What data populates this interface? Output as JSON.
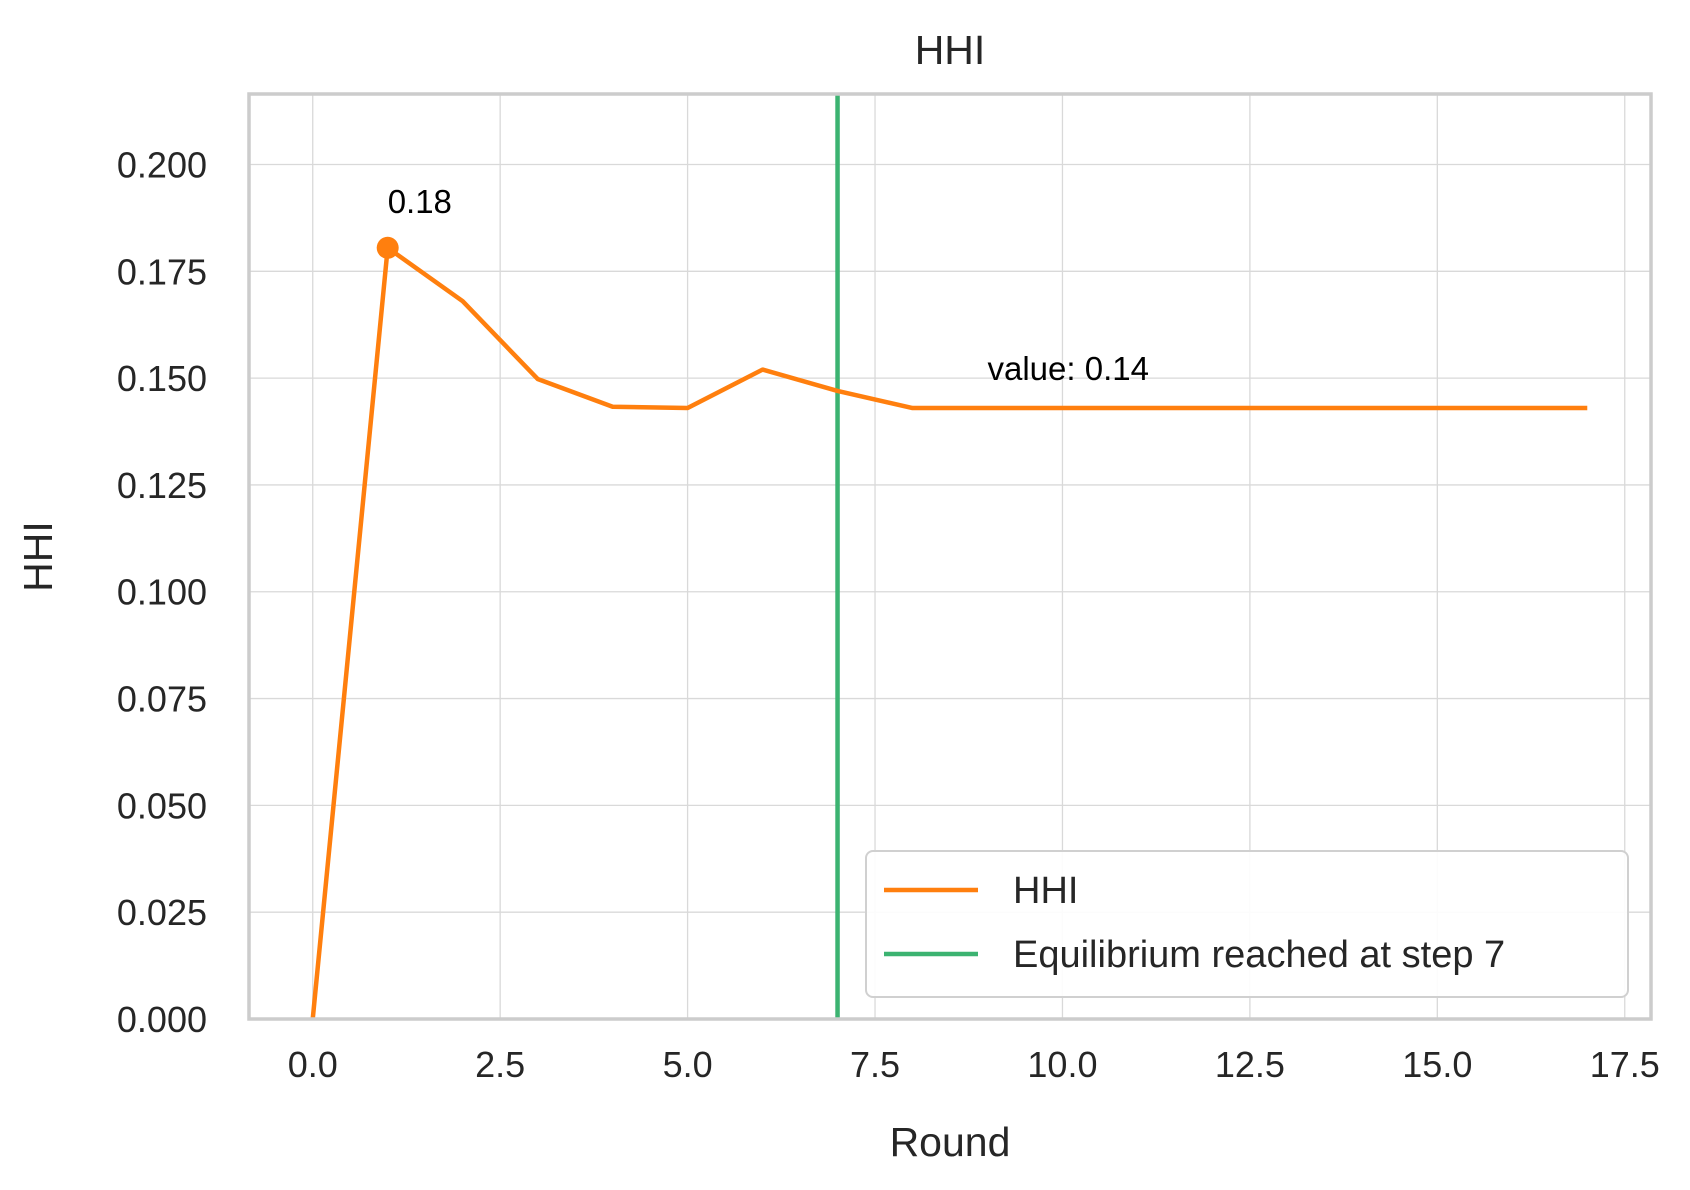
{
  "chart_data": {
    "type": "line",
    "title": "HHI",
    "xlabel": "Round",
    "ylabel": "HHI",
    "xlim": [
      -0.85,
      17.85
    ],
    "ylim": [
      0,
      0.2165
    ],
    "grid": true,
    "legend_position": "lower-right",
    "x_ticks": [
      "0.0",
      "2.5",
      "5.0",
      "7.5",
      "10.0",
      "12.5",
      "15.0",
      "17.5"
    ],
    "y_ticks": [
      "0.000",
      "0.025",
      "0.050",
      "0.075",
      "0.100",
      "0.125",
      "0.150",
      "0.175",
      "0.200"
    ],
    "series": [
      {
        "name": "HHI",
        "color": "#ff7f0e",
        "x": [
          0,
          1,
          2,
          3,
          4,
          5,
          6,
          7,
          8,
          9,
          10,
          11,
          12,
          13,
          14,
          15,
          16,
          17
        ],
        "y": [
          0.0,
          0.1805,
          0.168,
          0.1498,
          0.1433,
          0.143,
          0.152,
          0.147,
          0.143,
          0.143,
          0.143,
          0.143,
          0.143,
          0.143,
          0.143,
          0.143,
          0.143,
          0.143
        ]
      }
    ],
    "vertical_lines": [
      {
        "name": "Equilibrium reached at step 7",
        "x": 7,
        "color": "#3cb371"
      }
    ],
    "annotations": [
      {
        "text": "0.18",
        "x": 1,
        "y": 0.1805,
        "marker": true
      },
      {
        "text": "value: 0.14",
        "x": 9,
        "y": 0.143,
        "marker": false
      }
    ]
  }
}
